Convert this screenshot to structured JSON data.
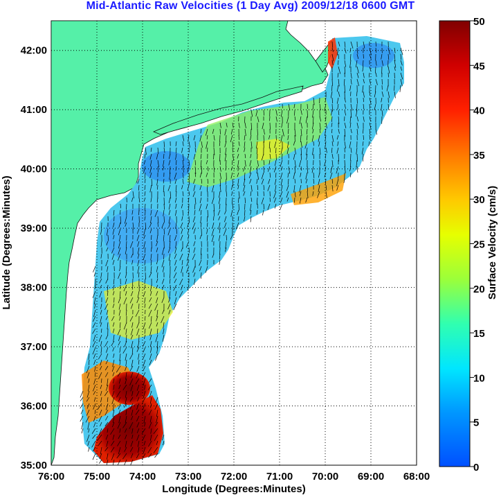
{
  "title": "Mid-Atlantic Raw Velocities (1 Day Avg) 2009/12/18 0600 GMT",
  "map": {
    "x_label": "Longitude (Degrees:Minutes)",
    "y_label": "Latitude (Degrees:Minutes)",
    "x_ticks": [
      "76:00",
      "75:00",
      "74:00",
      "73:00",
      "72:00",
      "71:00",
      "70:00",
      "69:00",
      "68:00"
    ],
    "y_ticks": [
      "42:00",
      "41:00",
      "40:00",
      "39:00",
      "38:00",
      "37:00",
      "36:00",
      "35:00"
    ],
    "lon_range": [
      -76,
      -68
    ],
    "lat_range": [
      35,
      42.5
    ],
    "land_color": "#55f0a8",
    "grid": "dotted"
  },
  "colorbar": {
    "label": "Surface Velocity (cm/s)",
    "ticks": [
      "50",
      "45",
      "40",
      "35",
      "30",
      "25",
      "20",
      "15",
      "10",
      "5",
      "0"
    ],
    "range": [
      0,
      50
    ],
    "colormap": "jet"
  }
}
